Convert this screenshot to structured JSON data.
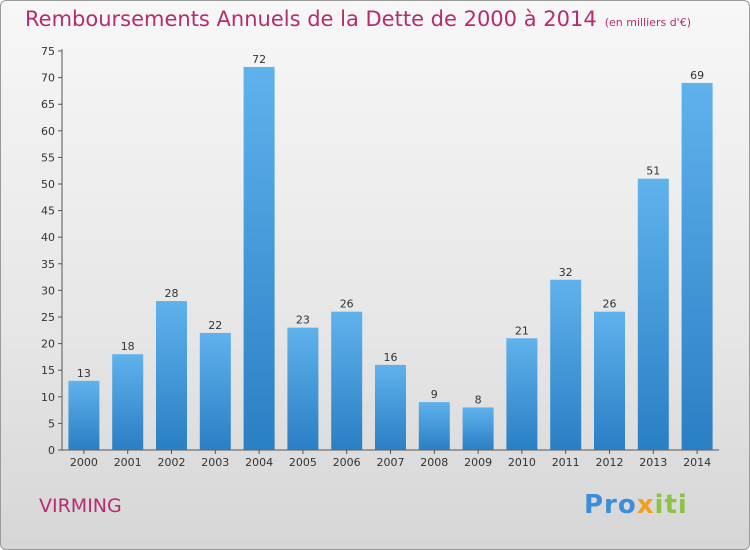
{
  "header": {
    "title": "Remboursements Annuels de la Dette de 2000 à 2014",
    "unit": "(en milliers d'€)"
  },
  "footer": {
    "commune": "VIRMING",
    "logo_parts": [
      "Pro",
      "x",
      "iti"
    ]
  },
  "colors": {
    "accent": "#b52c6f",
    "bar_top": "#5fb2ec",
    "bar_bottom": "#2a7fc4"
  },
  "chart_data": {
    "type": "bar",
    "categories": [
      "2000",
      "2001",
      "2002",
      "2003",
      "2004",
      "2005",
      "2006",
      "2007",
      "2008",
      "2009",
      "2010",
      "2011",
      "2012",
      "2013",
      "2014"
    ],
    "values": [
      13,
      18,
      28,
      22,
      72,
      23,
      26,
      16,
      9,
      8,
      21,
      32,
      26,
      51,
      69
    ],
    "ylim": [
      0,
      75
    ],
    "yticks": [
      0,
      5,
      10,
      15,
      20,
      25,
      30,
      35,
      40,
      45,
      50,
      55,
      60,
      65,
      70,
      75
    ],
    "grid": false,
    "value_labels": true
  }
}
